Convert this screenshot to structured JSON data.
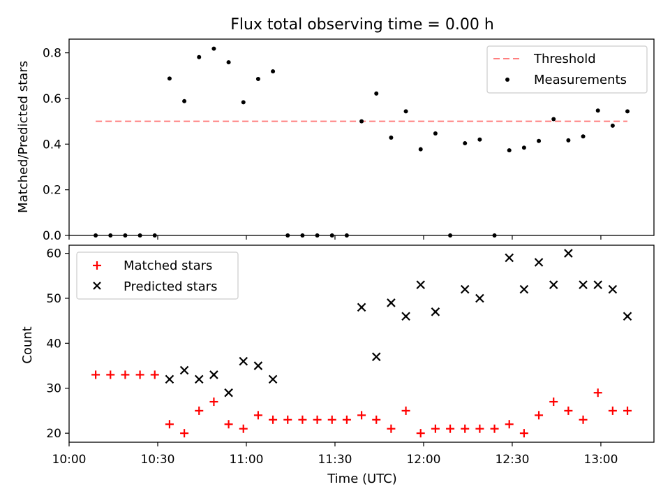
{
  "chart_data": {
    "title": "Flux total observing time = 0.00 h",
    "xlabel": "Time (UTC)",
    "xticks": [
      "10:00",
      "10:30",
      "11:00",
      "11:30",
      "12:00",
      "12:30",
      "13:00"
    ],
    "x_times": [
      "10:09",
      "10:14",
      "10:19",
      "10:24",
      "10:29",
      "10:34",
      "10:39",
      "10:44",
      "10:49",
      "10:54",
      "10:59",
      "11:04",
      "11:09",
      "11:14",
      "11:19",
      "11:24",
      "11:29",
      "11:34",
      "11:39",
      "11:44",
      "11:49",
      "11:54",
      "11:59",
      "12:04",
      "12:09",
      "12:14",
      "12:19",
      "12:24",
      "12:29",
      "12:34",
      "12:39",
      "12:44",
      "12:49",
      "12:54",
      "12:59",
      "13:04",
      "13:09"
    ],
    "panels": [
      {
        "type": "scatter",
        "ylabel": "Matched/Predicted stars",
        "ylim": [
          0,
          0.86
        ],
        "yticks": [
          "0.0",
          "0.2",
          "0.4",
          "0.6",
          "0.8"
        ],
        "threshold": {
          "name": "Threshold",
          "value": 0.5,
          "color": "#ff7f7f",
          "x_range": [
            "10:09",
            "13:09"
          ]
        },
        "series": [
          {
            "name": "Measurements",
            "color": "#000000",
            "values": [
              0,
              0,
              0,
              0,
              0,
              0.6875,
              0.5882,
              0.78125,
              0.8182,
              0.7586,
              0.5833,
              0.6857,
              0.71875,
              0,
              0,
              0,
              0,
              0,
              0.5,
              0.6216,
              0.4286,
              0.5435,
              0.3774,
              0.4468,
              0,
              0.4038,
              0.42,
              0,
              0.3729,
              0.3846,
              0.4138,
              0.5094,
              0.4167,
              0.434,
              0.5472,
              0.4808,
              0.5435
            ]
          }
        ],
        "legend_position": "top-right"
      },
      {
        "type": "scatter",
        "ylabel": "Count",
        "ylim": [
          18,
          61.8
        ],
        "yticks": [
          "20",
          "30",
          "40",
          "50",
          "60"
        ],
        "series": [
          {
            "name": "Matched stars",
            "marker": "plus",
            "color": "#ff0000",
            "values": [
              33,
              33,
              33,
              33,
              33,
              22,
              20,
              25,
              27,
              22,
              21,
              24,
              23,
              23,
              23,
              23,
              23,
              23,
              24,
              23,
              21,
              25,
              20,
              21,
              21,
              21,
              21,
              21,
              22,
              20,
              24,
              27,
              25,
              23,
              29,
              25,
              25
            ]
          },
          {
            "name": "Predicted stars",
            "marker": "x",
            "color": "#000000",
            "values": [
              null,
              null,
              null,
              null,
              null,
              32,
              34,
              32,
              33,
              29,
              36,
              35,
              32,
              null,
              null,
              null,
              null,
              null,
              48,
              37,
              49,
              46,
              53,
              47,
              null,
              52,
              50,
              null,
              59,
              52,
              58,
              53,
              60,
              53,
              53,
              52,
              46
            ]
          }
        ],
        "legend_position": "top-left"
      }
    ]
  }
}
